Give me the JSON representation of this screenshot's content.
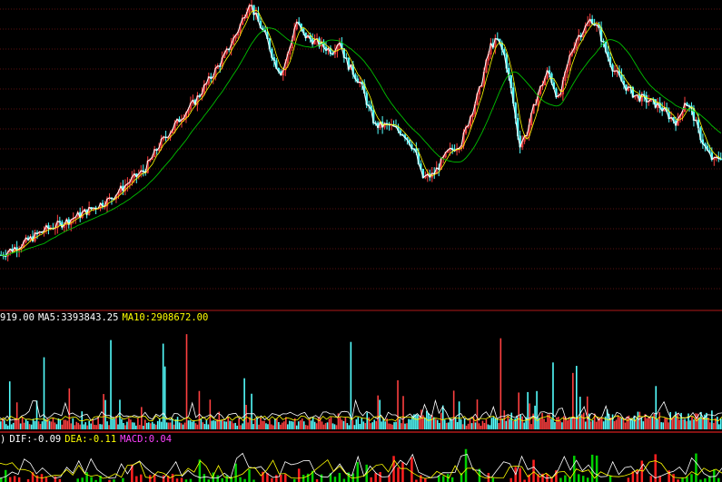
{
  "colors": {
    "background": "#000000",
    "grid": "#5a1010",
    "divider": "#b01818",
    "candle_up": "#ff4040",
    "candle_down": "#54ffff",
    "price_line": "#ffffff",
    "ma_short": "#ffff00",
    "ma_long": "#00c000",
    "dif": "#ffffff",
    "dea": "#ffff00",
    "macd_label": "#ff40ff",
    "macd_pos": "#ff2020",
    "macd_neg": "#00d000"
  },
  "volume_readout": {
    "prefix": "919.00",
    "ma5_label": "MA5:",
    "ma5_value": "3393843.25",
    "ma10_label": "MA10:",
    "ma10_value": "2908672.00"
  },
  "macd_readout": {
    "prefix": ")",
    "dif_label": "DIF:",
    "dif_value": "-0.09",
    "dea_label": "DEA:",
    "dea_value": "-0.11",
    "macd_label": "MACD:",
    "macd_value": "0.04"
  },
  "chart_data": {
    "type": "line",
    "panels": [
      "price",
      "volume",
      "macd"
    ],
    "grid": true,
    "price_path": [
      [
        0,
        0.08
      ],
      [
        0.03,
        0.12
      ],
      [
        0.06,
        0.17
      ],
      [
        0.09,
        0.2
      ],
      [
        0.12,
        0.24
      ],
      [
        0.15,
        0.28
      ],
      [
        0.18,
        0.35
      ],
      [
        0.2,
        0.39
      ],
      [
        0.22,
        0.48
      ],
      [
        0.25,
        0.58
      ],
      [
        0.27,
        0.64
      ],
      [
        0.29,
        0.72
      ],
      [
        0.31,
        0.8
      ],
      [
        0.33,
        0.9
      ],
      [
        0.345,
        1.0
      ],
      [
        0.355,
        0.94
      ],
      [
        0.37,
        0.86
      ],
      [
        0.38,
        0.78
      ],
      [
        0.39,
        0.74
      ],
      [
        0.4,
        0.82
      ],
      [
        0.41,
        0.93
      ],
      [
        0.42,
        0.88
      ],
      [
        0.44,
        0.85
      ],
      [
        0.46,
        0.82
      ],
      [
        0.47,
        0.86
      ],
      [
        0.48,
        0.78
      ],
      [
        0.5,
        0.7
      ],
      [
        0.51,
        0.62
      ],
      [
        0.52,
        0.55
      ],
      [
        0.54,
        0.55
      ],
      [
        0.56,
        0.52
      ],
      [
        0.575,
        0.46
      ],
      [
        0.585,
        0.36
      ],
      [
        0.6,
        0.37
      ],
      [
        0.62,
        0.45
      ],
      [
        0.64,
        0.49
      ],
      [
        0.65,
        0.57
      ],
      [
        0.665,
        0.68
      ],
      [
        0.68,
        0.84
      ],
      [
        0.69,
        0.86
      ],
      [
        0.7,
        0.8
      ],
      [
        0.71,
        0.66
      ],
      [
        0.72,
        0.48
      ],
      [
        0.73,
        0.52
      ],
      [
        0.745,
        0.66
      ],
      [
        0.76,
        0.75
      ],
      [
        0.775,
        0.64
      ],
      [
        0.79,
        0.8
      ],
      [
        0.8,
        0.87
      ],
      [
        0.81,
        0.9
      ],
      [
        0.82,
        0.94
      ],
      [
        0.83,
        0.9
      ],
      [
        0.84,
        0.82
      ],
      [
        0.85,
        0.76
      ],
      [
        0.865,
        0.7
      ],
      [
        0.88,
        0.66
      ],
      [
        0.9,
        0.64
      ],
      [
        0.915,
        0.62
      ],
      [
        0.93,
        0.58
      ],
      [
        0.94,
        0.56
      ],
      [
        0.95,
        0.64
      ],
      [
        0.96,
        0.6
      ],
      [
        0.97,
        0.52
      ],
      [
        0.98,
        0.46
      ],
      [
        0.99,
        0.42
      ],
      [
        1.0,
        0.44
      ]
    ]
  }
}
